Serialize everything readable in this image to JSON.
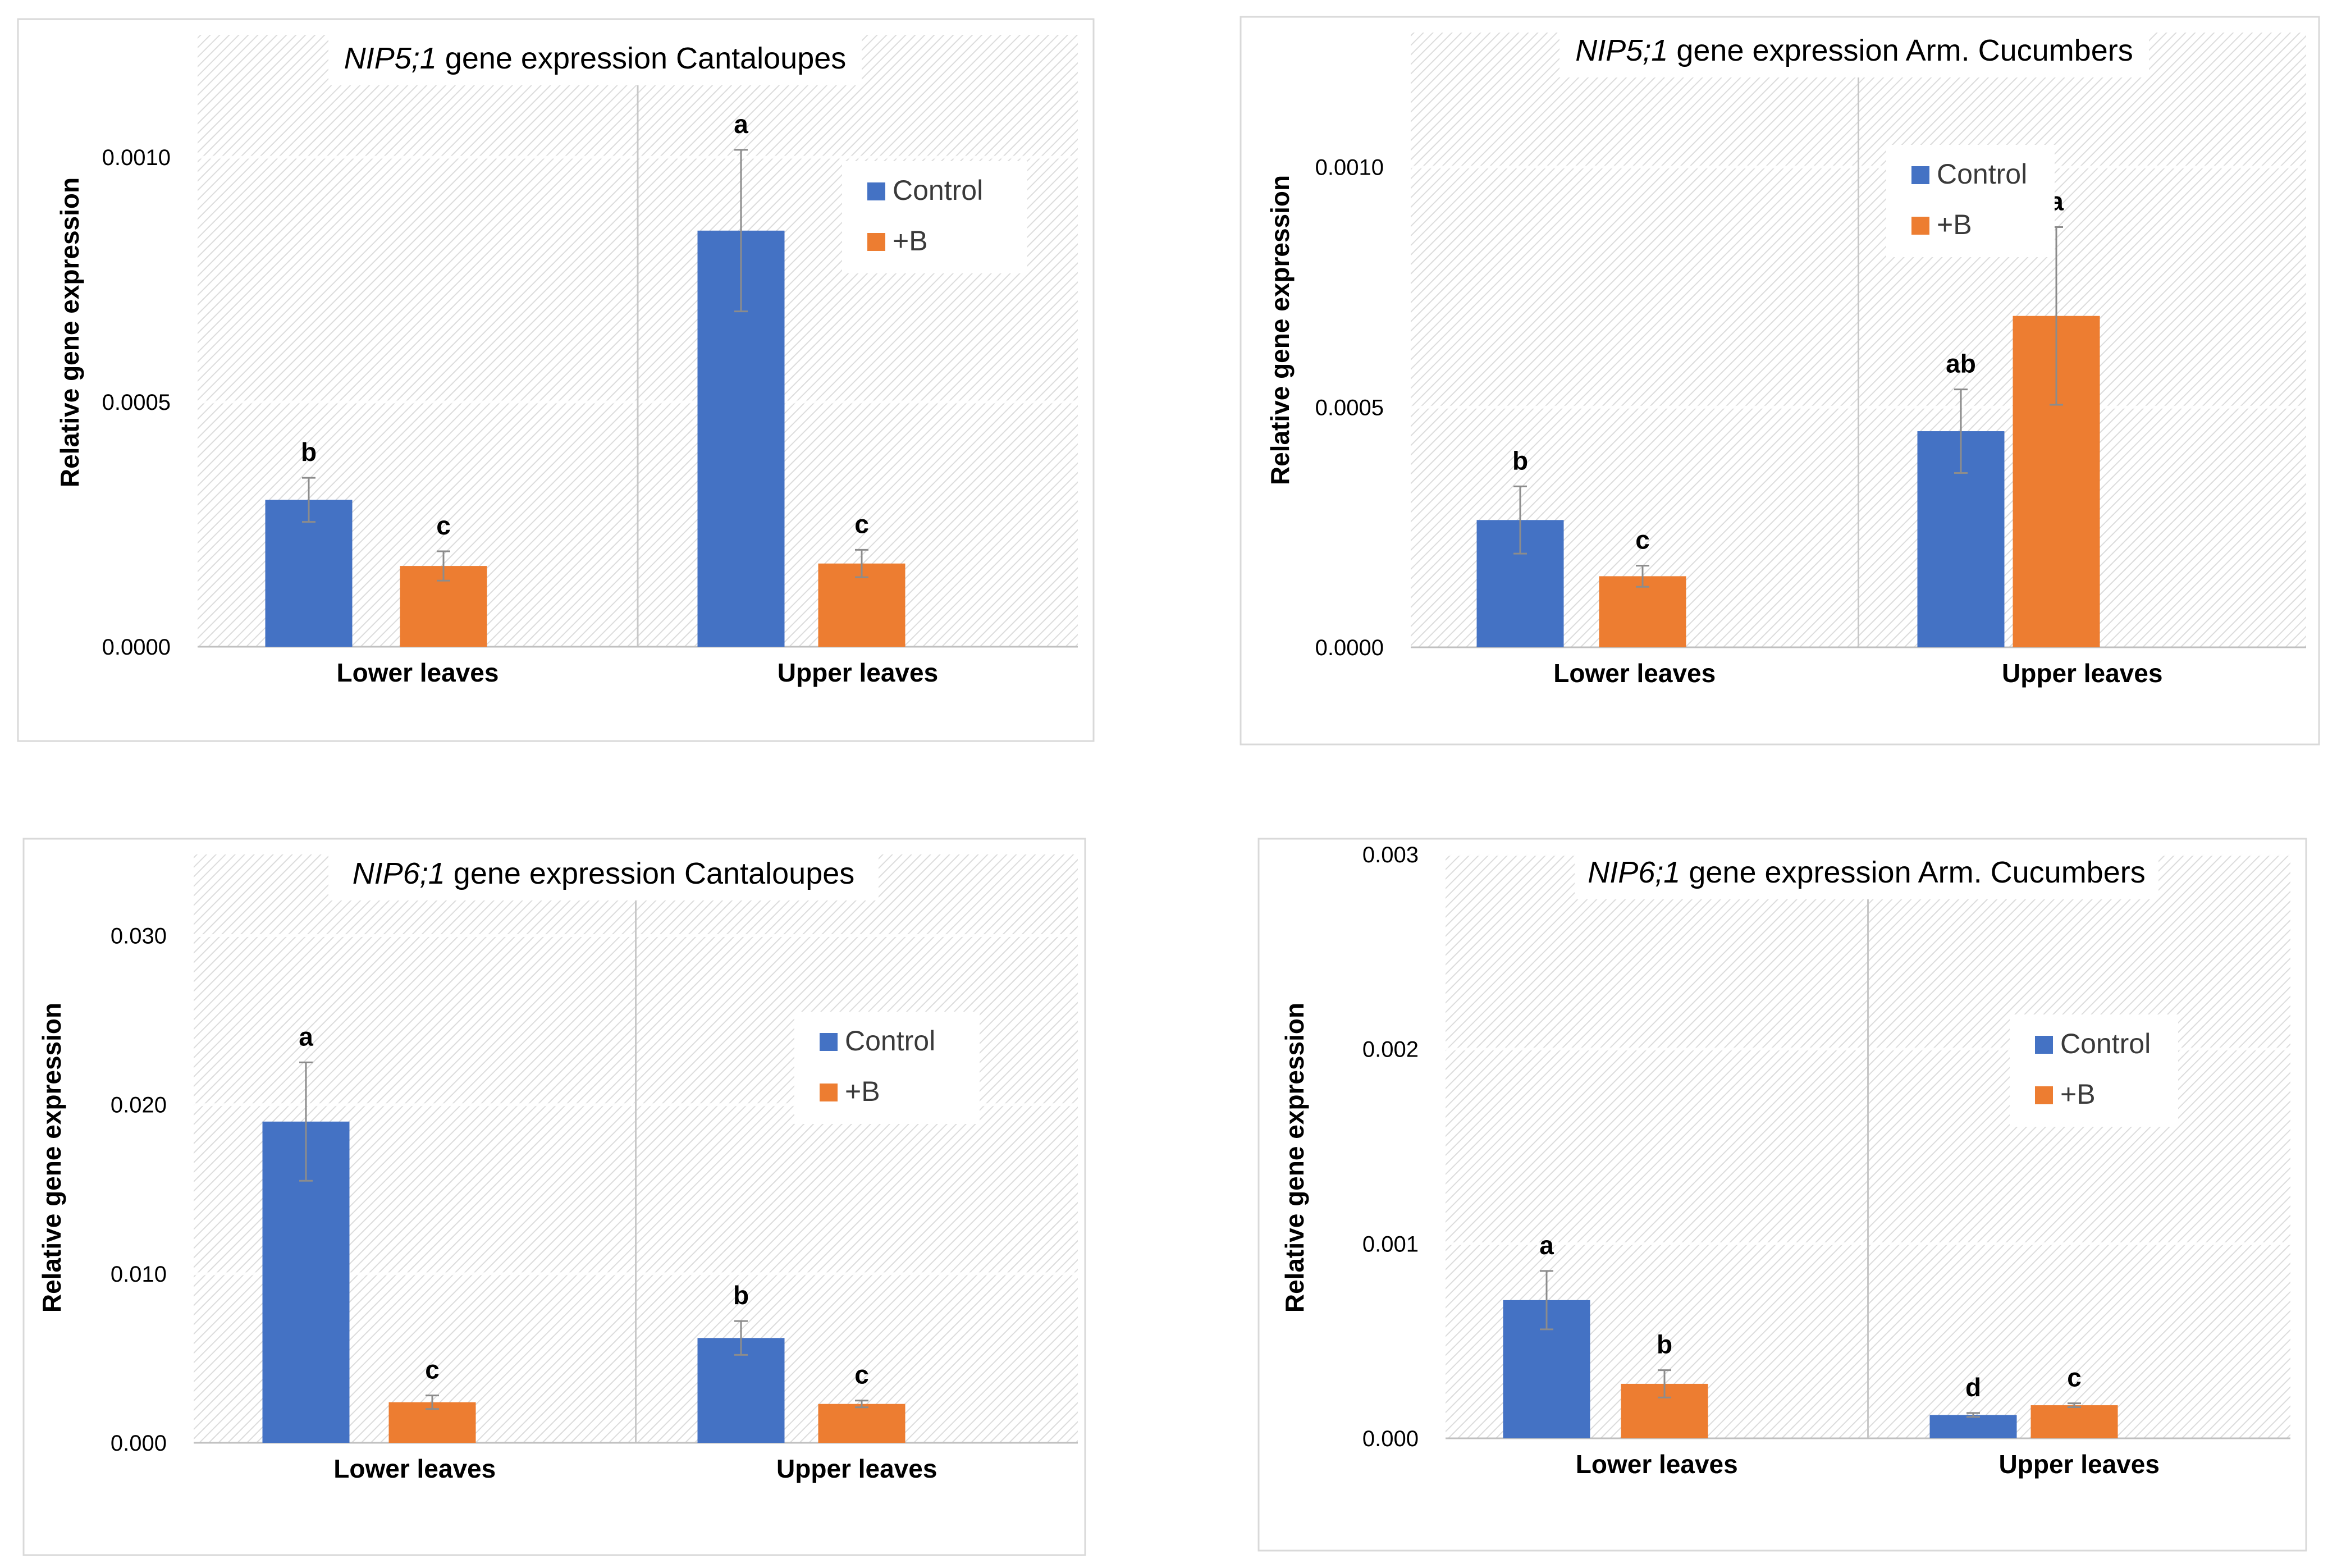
{
  "chart_data": [
    {
      "type": "bar",
      "title_italic": "NIP5;1",
      "title_rest": " gene expression Cantaloupes",
      "ylabel": "Relative gene expression",
      "categories": [
        "Lower leaves",
        "Upper leaves"
      ],
      "ylim": [
        0,
        0.00125
      ],
      "yticks": [
        0.0,
        0.0005,
        0.001
      ],
      "ytick_labels": [
        "0.0000",
        "0.0005",
        "0.0010"
      ],
      "series": [
        {
          "name": "Control",
          "color": "#4472c4",
          "values": [
            0.0003,
            0.00085
          ],
          "errors": [
            4.5e-05,
            0.000165
          ],
          "letters": [
            "b",
            "a"
          ]
        },
        {
          "name": "+B",
          "color": "#ed7d31",
          "values": [
            0.000165,
            0.00017
          ],
          "errors": [
            3e-05,
            2.8e-05
          ],
          "letters": [
            "c",
            "c"
          ]
        }
      ],
      "legend_position": "top-right",
      "grid": true
    },
    {
      "type": "bar",
      "title_italic": "NIP5;1",
      "title_rest": " gene expression Arm. Cucumbers",
      "ylabel": "Relative gene expression",
      "categories": [
        "Lower leaves",
        "Upper leaves"
      ],
      "ylim": [
        0,
        0.00128
      ],
      "yticks": [
        0.0,
        0.0005,
        0.001
      ],
      "ytick_labels": [
        "0.0000",
        "0.0005",
        "0.0010"
      ],
      "series": [
        {
          "name": "Control",
          "color": "#4472c4",
          "values": [
            0.000265,
            0.00045
          ],
          "errors": [
            7e-05,
            8.7e-05
          ],
          "letters": [
            "b",
            "ab"
          ]
        },
        {
          "name": "+B",
          "color": "#ed7d31",
          "values": [
            0.000148,
            0.00069
          ],
          "errors": [
            2.2e-05,
            0.000185
          ],
          "letters": [
            "c",
            "a"
          ]
        }
      ],
      "legend_position": "top-center-right",
      "grid": true
    },
    {
      "type": "bar",
      "title_italic": "NIP6;1",
      "title_rest": " gene expression Cantaloupes",
      "ylabel": "Relative gene expression",
      "categories": [
        "Lower leaves",
        "Upper leaves"
      ],
      "ylim": [
        0,
        0.0348
      ],
      "yticks": [
        0.0,
        0.01,
        0.02,
        0.03
      ],
      "ytick_labels": [
        "0.000",
        "0.010",
        "0.020",
        "0.030"
      ],
      "series": [
        {
          "name": "Control",
          "color": "#4472c4",
          "values": [
            0.019,
            0.0062
          ],
          "errors": [
            0.0035,
            0.001
          ],
          "letters": [
            "a",
            "b"
          ]
        },
        {
          "name": "+B",
          "color": "#ed7d31",
          "values": [
            0.0024,
            0.0023
          ],
          "errors": [
            0.0004,
            0.0002
          ],
          "letters": [
            "c",
            "c"
          ]
        }
      ],
      "legend_position": "top-right",
      "grid": true
    },
    {
      "type": "bar",
      "title_italic": "NIP6;1",
      "title_rest": " gene expression Arm. Cucumbers",
      "ylabel": "Relative gene expression",
      "categories": [
        "Lower leaves",
        "Upper leaves"
      ],
      "ylim": [
        0,
        0.003
      ],
      "yticks": [
        0.0,
        0.001,
        0.002,
        0.003
      ],
      "ytick_labels": [
        "0.000",
        "0.001",
        "0.002",
        "0.003"
      ],
      "series": [
        {
          "name": "Control",
          "color": "#4472c4",
          "values": [
            0.00071,
            0.00012
          ],
          "errors": [
            0.00015,
            1e-05
          ],
          "letters": [
            "a",
            "d"
          ]
        },
        {
          "name": "+B",
          "color": "#ed7d31",
          "values": [
            0.00028,
            0.00017
          ],
          "errors": [
            7e-05,
            1e-05
          ],
          "letters": [
            "b",
            "c"
          ]
        }
      ],
      "legend_position": "top-right",
      "grid": true
    }
  ]
}
